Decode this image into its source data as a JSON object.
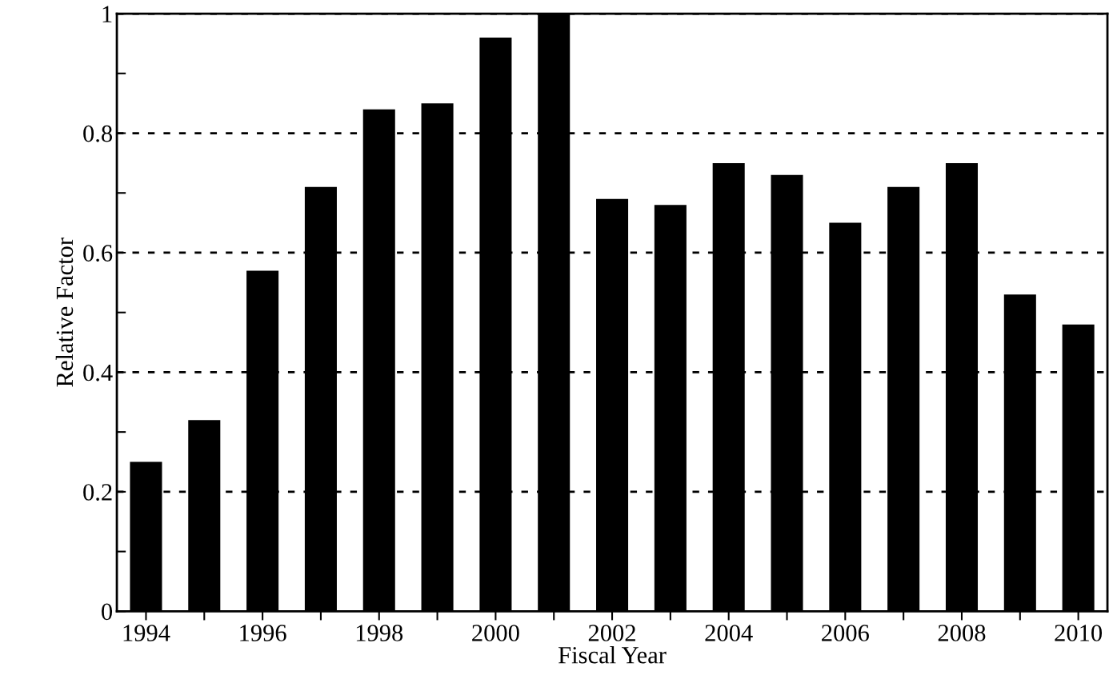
{
  "chart_data": {
    "type": "bar",
    "xlabel": "Fiscal Year",
    "ylabel": "Relative Factor",
    "categories": [
      "1994",
      null,
      "1996",
      null,
      "1998",
      null,
      "2000",
      null,
      "2002",
      null,
      "2004",
      null,
      "2006",
      null,
      "2008",
      null,
      "2010"
    ],
    "values": [
      0.25,
      0.32,
      0.57,
      0.71,
      0.84,
      0.85,
      0.96,
      1.0,
      0.69,
      0.68,
      0.75,
      0.73,
      0.65,
      0.71,
      0.75,
      0.53,
      0.48
    ],
    "color": "#000000",
    "ylim": [
      0,
      1
    ],
    "yticks": [
      0,
      {
        "value": 0.1,
        "label": null
      },
      0.2,
      {
        "value": 0.3,
        "label": null
      },
      0.4,
      {
        "value": 0.5,
        "label": null
      },
      0.6,
      {
        "value": 0.7,
        "label": null
      },
      0.8,
      {
        "value": 0.9,
        "label": null
      },
      1
    ],
    "grid": "y"
  }
}
